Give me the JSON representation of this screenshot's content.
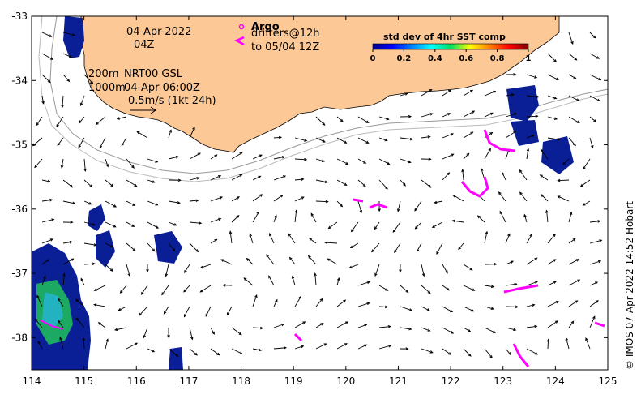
{
  "map": {
    "date_line": "04-Apr-2022",
    "time_line": "04Z",
    "depth_lines": [
      "200m",
      "1000m"
    ],
    "product": "NRT00 GSL",
    "valid_time": "04-Apr 06:00Z",
    "scale_label": "0.5m/s (1kt 24h)",
    "argo_label": "Argo",
    "drifters_line1": "drifters@12h",
    "drifters_line2": "to 05/04 12Z",
    "credit": "© IMOS 07-Apr-2022 14:52 Hobart"
  },
  "colorbar": {
    "title": "std dev of 4hr SST comp",
    "ticks": [
      "0",
      "0.2",
      "0.4",
      "0.6",
      "0.8",
      "1"
    ]
  },
  "axes": {
    "x_ticks": [
      "114",
      "115",
      "116",
      "117",
      "118",
      "119",
      "120",
      "121",
      "122",
      "123",
      "124",
      "125"
    ],
    "y_ticks": [
      "-33",
      "-34",
      "-35",
      "-36",
      "-37",
      "-38"
    ],
    "xlim": [
      114,
      125
    ],
    "ylim": [
      -38.5,
      -33
    ]
  },
  "colors": {
    "land": "#fcc896",
    "drifter": "#ff00ff",
    "sst_low": "#001a8c",
    "sst_mid": "#00c84a"
  }
}
